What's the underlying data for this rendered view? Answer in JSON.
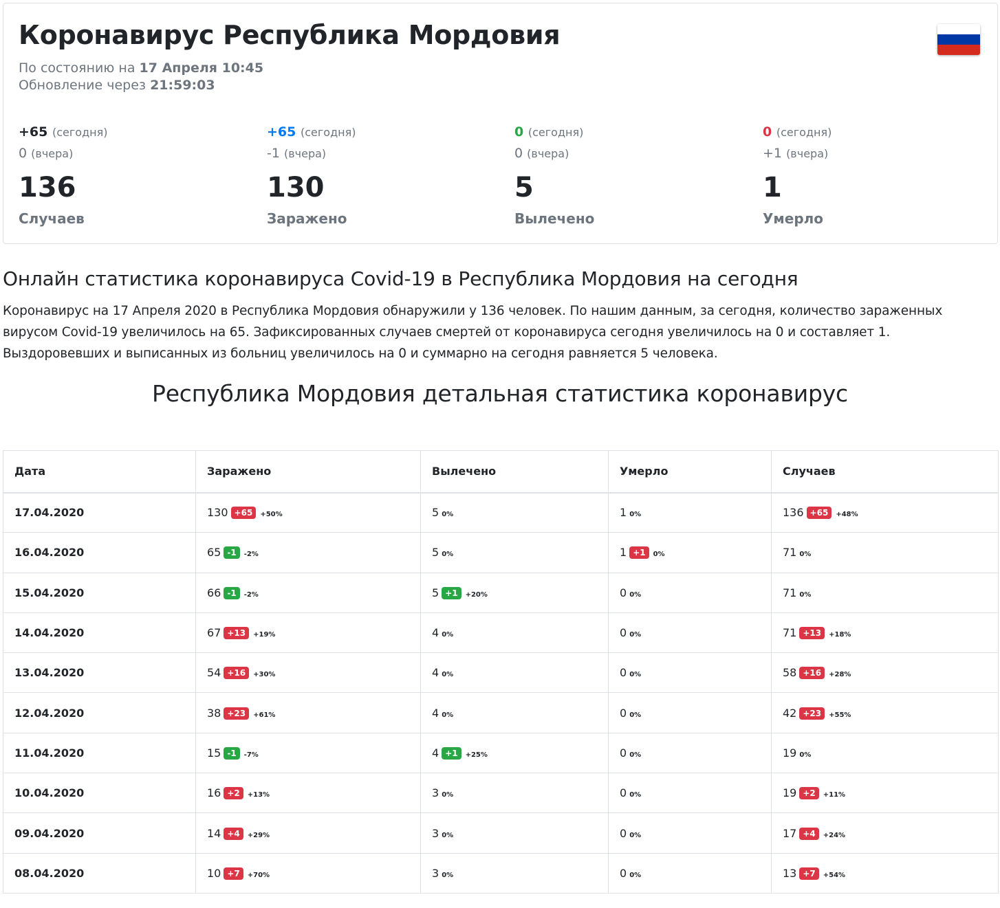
{
  "header": {
    "title": "Коронавирус Республика Мордовия",
    "status_prefix": "По состоянию на",
    "status_date": "17 Апреля 10:45",
    "update_prefix": "Обновление через",
    "update_time": "21:59:03",
    "flag_colors": [
      "#ffffff",
      "#0039a6",
      "#d52b1e"
    ]
  },
  "stats": [
    {
      "today": "+65",
      "today_color": "#212529",
      "today_note": "(сегодня)",
      "yesterday": "0",
      "yesterday_note": "(вчера)",
      "total": "136",
      "label": "Случаев"
    },
    {
      "today": "+65",
      "today_color": "#007bff",
      "today_note": "(сегодня)",
      "yesterday": "-1",
      "yesterday_note": "(вчера)",
      "total": "130",
      "label": "Заражено"
    },
    {
      "today": "0",
      "today_color": "#28a745",
      "today_note": "(сегодня)",
      "yesterday": "0",
      "yesterday_note": "(вчера)",
      "total": "5",
      "label": "Вылечено"
    },
    {
      "today": "0",
      "today_color": "#dc3545",
      "today_note": "(сегодня)",
      "yesterday": "+1",
      "yesterday_note": "(вчера)",
      "total": "1",
      "label": "Умерло"
    }
  ],
  "article": {
    "headline": "Онлайн статистика коронавируса Covid-19 в Республика Мордовия на сегодня",
    "text": "Коронавирус на 17 Апреля 2020 в Республика Мордовия обнаружили у 136 человек. По нашим данным, за сегодня, количество зараженных вирусом Covid-19 увеличилось на 65. Зафиксированных случаев смертей от коронавируса сегодня увеличилось на 0 и составляет 1. Выздоровевших и выписанных из больниц увеличилось на 0 и суммарно на сегодня равняется 5 человека."
  },
  "section_title": "Республика Мордовия детальная статистика коронавирус",
  "table": {
    "columns": [
      "Дата",
      "Заражено",
      "Вылечено",
      "Умерло",
      "Случаев"
    ],
    "rows": [
      {
        "date": "17.04.2020",
        "cells": [
          {
            "value": "130",
            "badge": "+65",
            "badge_color": "red",
            "pct": "+50%"
          },
          {
            "value": "5",
            "badge": "",
            "badge_color": "",
            "pct": "0%"
          },
          {
            "value": "1",
            "badge": "",
            "badge_color": "",
            "pct": "0%"
          },
          {
            "value": "136",
            "badge": "+65",
            "badge_color": "red",
            "pct": "+48%"
          }
        ]
      },
      {
        "date": "16.04.2020",
        "cells": [
          {
            "value": "65",
            "badge": "-1",
            "badge_color": "green",
            "pct": "-2%"
          },
          {
            "value": "5",
            "badge": "",
            "badge_color": "",
            "pct": "0%"
          },
          {
            "value": "1",
            "badge": "+1",
            "badge_color": "red",
            "pct": "0%"
          },
          {
            "value": "71",
            "badge": "",
            "badge_color": "",
            "pct": "0%"
          }
        ]
      },
      {
        "date": "15.04.2020",
        "cells": [
          {
            "value": "66",
            "badge": "-1",
            "badge_color": "green",
            "pct": "-2%"
          },
          {
            "value": "5",
            "badge": "+1",
            "badge_color": "green",
            "pct": "+20%"
          },
          {
            "value": "0",
            "badge": "",
            "badge_color": "",
            "pct": "0%"
          },
          {
            "value": "71",
            "badge": "",
            "badge_color": "",
            "pct": "0%"
          }
        ]
      },
      {
        "date": "14.04.2020",
        "cells": [
          {
            "value": "67",
            "badge": "+13",
            "badge_color": "red",
            "pct": "+19%"
          },
          {
            "value": "4",
            "badge": "",
            "badge_color": "",
            "pct": "0%"
          },
          {
            "value": "0",
            "badge": "",
            "badge_color": "",
            "pct": "0%"
          },
          {
            "value": "71",
            "badge": "+13",
            "badge_color": "red",
            "pct": "+18%"
          }
        ]
      },
      {
        "date": "13.04.2020",
        "cells": [
          {
            "value": "54",
            "badge": "+16",
            "badge_color": "red",
            "pct": "+30%"
          },
          {
            "value": "4",
            "badge": "",
            "badge_color": "",
            "pct": "0%"
          },
          {
            "value": "0",
            "badge": "",
            "badge_color": "",
            "pct": "0%"
          },
          {
            "value": "58",
            "badge": "+16",
            "badge_color": "red",
            "pct": "+28%"
          }
        ]
      },
      {
        "date": "12.04.2020",
        "cells": [
          {
            "value": "38",
            "badge": "+23",
            "badge_color": "red",
            "pct": "+61%"
          },
          {
            "value": "4",
            "badge": "",
            "badge_color": "",
            "pct": "0%"
          },
          {
            "value": "0",
            "badge": "",
            "badge_color": "",
            "pct": "0%"
          },
          {
            "value": "42",
            "badge": "+23",
            "badge_color": "red",
            "pct": "+55%"
          }
        ]
      },
      {
        "date": "11.04.2020",
        "cells": [
          {
            "value": "15",
            "badge": "-1",
            "badge_color": "green",
            "pct": "-7%"
          },
          {
            "value": "4",
            "badge": "+1",
            "badge_color": "green",
            "pct": "+25%"
          },
          {
            "value": "0",
            "badge": "",
            "badge_color": "",
            "pct": "0%"
          },
          {
            "value": "19",
            "badge": "",
            "badge_color": "",
            "pct": "0%"
          }
        ]
      },
      {
        "date": "10.04.2020",
        "cells": [
          {
            "value": "16",
            "badge": "+2",
            "badge_color": "red",
            "pct": "+13%"
          },
          {
            "value": "3",
            "badge": "",
            "badge_color": "",
            "pct": "0%"
          },
          {
            "value": "0",
            "badge": "",
            "badge_color": "",
            "pct": "0%"
          },
          {
            "value": "19",
            "badge": "+2",
            "badge_color": "red",
            "pct": "+11%"
          }
        ]
      },
      {
        "date": "09.04.2020",
        "cells": [
          {
            "value": "14",
            "badge": "+4",
            "badge_color": "red",
            "pct": "+29%"
          },
          {
            "value": "3",
            "badge": "",
            "badge_color": "",
            "pct": "0%"
          },
          {
            "value": "0",
            "badge": "",
            "badge_color": "",
            "pct": "0%"
          },
          {
            "value": "17",
            "badge": "+4",
            "badge_color": "red",
            "pct": "+24%"
          }
        ]
      },
      {
        "date": "08.04.2020",
        "cells": [
          {
            "value": "10",
            "badge": "+7",
            "badge_color": "red",
            "pct": "+70%"
          },
          {
            "value": "3",
            "badge": "",
            "badge_color": "",
            "pct": "0%"
          },
          {
            "value": "0",
            "badge": "",
            "badge_color": "",
            "pct": "0%"
          },
          {
            "value": "13",
            "badge": "+7",
            "badge_color": "red",
            "pct": "+54%"
          }
        ]
      }
    ]
  }
}
